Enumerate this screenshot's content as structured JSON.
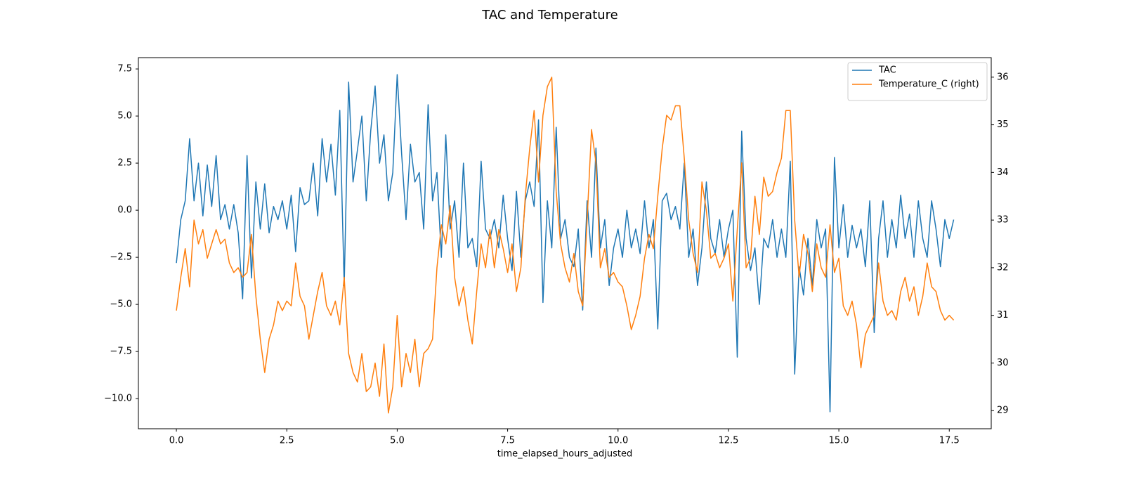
{
  "chart_data": {
    "type": "line",
    "title": "TAC and Temperature",
    "xlabel": "time_elapsed_hours_adjusted",
    "x": [
      0.0,
      0.1,
      0.2,
      0.3,
      0.4,
      0.5,
      0.6,
      0.7,
      0.8,
      0.9,
      1.0,
      1.1,
      1.2,
      1.3,
      1.4,
      1.5,
      1.6,
      1.7,
      1.8,
      1.9,
      2.0,
      2.1,
      2.2,
      2.3,
      2.4,
      2.5,
      2.6,
      2.7,
      2.8,
      2.9,
      3.0,
      3.1,
      3.2,
      3.3,
      3.4,
      3.5,
      3.6,
      3.7,
      3.8,
      3.9,
      4.0,
      4.1,
      4.2,
      4.3,
      4.4,
      4.5,
      4.6,
      4.7,
      4.8,
      4.9,
      5.0,
      5.1,
      5.2,
      5.3,
      5.4,
      5.5,
      5.6,
      5.7,
      5.8,
      5.9,
      6.0,
      6.1,
      6.2,
      6.3,
      6.4,
      6.5,
      6.6,
      6.7,
      6.8,
      6.9,
      7.0,
      7.1,
      7.2,
      7.3,
      7.4,
      7.5,
      7.6,
      7.7,
      7.8,
      7.9,
      8.0,
      8.1,
      8.2,
      8.3,
      8.4,
      8.5,
      8.6,
      8.7,
      8.8,
      8.9,
      9.0,
      9.1,
      9.2,
      9.3,
      9.4,
      9.5,
      9.6,
      9.7,
      9.8,
      9.9,
      10.0,
      10.1,
      10.2,
      10.3,
      10.4,
      10.5,
      10.6,
      10.7,
      10.8,
      10.9,
      11.0,
      11.1,
      11.2,
      11.3,
      11.4,
      11.5,
      11.6,
      11.7,
      11.8,
      11.9,
      12.0,
      12.1,
      12.2,
      12.3,
      12.4,
      12.5,
      12.6,
      12.7,
      12.8,
      12.9,
      13.0,
      13.1,
      13.2,
      13.3,
      13.4,
      13.5,
      13.6,
      13.7,
      13.8,
      13.9,
      14.0,
      14.1,
      14.2,
      14.3,
      14.4,
      14.5,
      14.6,
      14.7,
      14.8,
      14.9,
      15.0,
      15.1,
      15.2,
      15.3,
      15.4,
      15.5,
      15.6,
      15.7,
      15.8,
      15.9,
      16.0,
      16.1,
      16.2,
      16.3,
      16.4,
      16.5,
      16.6,
      16.7,
      16.8,
      16.9,
      17.0,
      17.1,
      17.2,
      17.3,
      17.4,
      17.5,
      17.6
    ],
    "series": [
      {
        "name": "TAC",
        "color": "#1f77b4",
        "values": [
          -2.8,
          -0.5,
          0.5,
          3.8,
          0.5,
          2.5,
          -0.3,
          2.4,
          0.2,
          2.9,
          -0.5,
          0.3,
          -1.0,
          0.3,
          -1.2,
          -4.7,
          2.9,
          -3.6,
          1.5,
          -1.0,
          1.4,
          -1.2,
          0.2,
          -0.5,
          0.5,
          -1.0,
          0.8,
          -2.2,
          1.2,
          0.3,
          0.5,
          2.5,
          -0.3,
          3.8,
          1.5,
          3.5,
          0.8,
          5.3,
          -4.0,
          6.8,
          1.5,
          3.2,
          5.0,
          0.5,
          4.2,
          6.6,
          2.5,
          4.0,
          0.5,
          2.0,
          7.2,
          3.0,
          -0.5,
          3.5,
          1.5,
          2.0,
          -1.0,
          5.6,
          0.5,
          2.0,
          -2.5,
          4.0,
          -1.0,
          0.5,
          -2.5,
          2.5,
          -2.0,
          -1.5,
          -3.0,
          2.6,
          -1.0,
          -1.5,
          -0.5,
          -2.0,
          0.8,
          -1.5,
          -3.2,
          1.0,
          -2.5,
          0.5,
          1.5,
          0.2,
          4.8,
          -4.9,
          0.5,
          -2.0,
          4.4,
          -1.5,
          -0.5,
          -2.5,
          -3.0,
          -1.0,
          -5.3,
          0.5,
          -2.5,
          3.3,
          -2.0,
          -0.5,
          -4.0,
          -2.0,
          -1.0,
          -2.5,
          0.0,
          -2.0,
          -1.0,
          -2.3,
          0.5,
          -2.0,
          -0.5,
          -6.3,
          0.5,
          0.9,
          -0.5,
          0.2,
          -1.0,
          2.5,
          -2.5,
          -1.0,
          -4.0,
          -2.0,
          1.5,
          -1.5,
          -2.3,
          -0.5,
          -2.5,
          -1.0,
          0.0,
          -7.8,
          4.2,
          -1.5,
          -3.2,
          -2.0,
          -5.0,
          -1.5,
          -2.0,
          -0.5,
          -2.5,
          -1.0,
          -2.5,
          2.6,
          -8.7,
          -3.0,
          -4.5,
          -1.5,
          -4.0,
          -0.5,
          -2.0,
          -1.0,
          -10.7,
          2.8,
          -2.0,
          0.3,
          -2.5,
          -0.8,
          -2.0,
          -1.0,
          -3.0,
          0.5,
          -6.5,
          -1.5,
          0.5,
          -2.5,
          -0.5,
          -2.0,
          0.8,
          -1.5,
          -0.2,
          -2.5,
          0.5,
          -1.5,
          -2.5,
          0.5,
          -1.0,
          -3.0,
          -0.5,
          -1.5,
          -0.5
        ]
      },
      {
        "name": "Temperature_C (right)",
        "color": "#ff7f0e",
        "axis": "y2",
        "values": [
          31.1,
          31.8,
          32.4,
          31.6,
          33.0,
          32.5,
          32.8,
          32.2,
          32.5,
          32.8,
          32.5,
          32.6,
          32.1,
          31.9,
          32.0,
          31.8,
          31.9,
          32.7,
          31.4,
          30.5,
          29.8,
          30.5,
          30.8,
          31.3,
          31.1,
          31.3,
          31.2,
          32.1,
          31.4,
          31.2,
          30.5,
          31.0,
          31.5,
          31.9,
          31.2,
          31.0,
          31.3,
          30.8,
          31.8,
          30.2,
          29.8,
          29.6,
          30.2,
          29.4,
          29.5,
          30.0,
          29.3,
          30.4,
          28.95,
          29.5,
          31.0,
          29.5,
          30.2,
          29.8,
          30.5,
          29.5,
          30.2,
          30.3,
          30.5,
          32.0,
          32.9,
          32.5,
          33.3,
          31.8,
          31.2,
          31.6,
          30.9,
          30.4,
          31.5,
          32.5,
          32.0,
          32.8,
          32.0,
          32.8,
          32.4,
          31.9,
          32.5,
          31.5,
          32.0,
          33.5,
          34.5,
          35.3,
          33.8,
          35.2,
          35.8,
          36.0,
          33.6,
          32.5,
          32.0,
          31.7,
          32.3,
          31.5,
          31.2,
          33.0,
          34.9,
          34.2,
          32.0,
          32.4,
          31.8,
          31.9,
          31.7,
          31.6,
          31.2,
          30.7,
          31.0,
          31.4,
          32.2,
          32.7,
          32.4,
          33.5,
          34.5,
          35.2,
          35.1,
          35.4,
          35.4,
          34.3,
          33.0,
          32.3,
          31.9,
          33.8,
          33.2,
          32.2,
          32.3,
          32.0,
          32.2,
          32.5,
          31.3,
          32.8,
          34.2,
          32.0,
          32.2,
          33.5,
          32.7,
          33.9,
          33.5,
          33.6,
          34.0,
          34.3,
          35.3,
          35.3,
          33.0,
          31.8,
          32.7,
          32.3,
          31.5,
          32.5,
          32.0,
          31.8,
          32.9,
          31.9,
          32.2,
          31.2,
          31.0,
          31.3,
          30.8,
          29.9,
          30.6,
          30.8,
          31.0,
          32.1,
          31.3,
          31.0,
          31.1,
          30.9,
          31.5,
          31.8,
          31.3,
          31.6,
          31.0,
          31.4,
          32.1,
          31.6,
          31.5,
          31.1,
          30.9,
          31.0,
          30.9
        ]
      }
    ],
    "xlim": [
      -0.86,
      18.45
    ],
    "xticks": [
      {
        "value": 0,
        "label": "0.0"
      },
      2.5,
      {
        "value": 5,
        "label": "5.0"
      },
      7.5,
      {
        "value": 10,
        "label": "10.0"
      },
      12.5,
      {
        "value": 15,
        "label": "15.0"
      },
      17.5
    ],
    "ylim": [
      -11.6,
      8.1
    ],
    "yticks": [
      {
        "value": -10,
        "label": "−10.0"
      },
      {
        "value": -7.5,
        "label": "−7.5"
      },
      {
        "value": -5,
        "label": "−5.0"
      },
      {
        "value": -2.5,
        "label": "−2.5"
      },
      {
        "value": 0,
        "label": "0.0"
      },
      2.5,
      {
        "value": 5,
        "label": "5.0"
      },
      7.5
    ],
    "y2lim": [
      28.62,
      36.41
    ],
    "y2ticks": [
      29,
      30,
      31,
      32,
      33,
      34,
      35,
      36
    ],
    "legend": "upper right"
  }
}
